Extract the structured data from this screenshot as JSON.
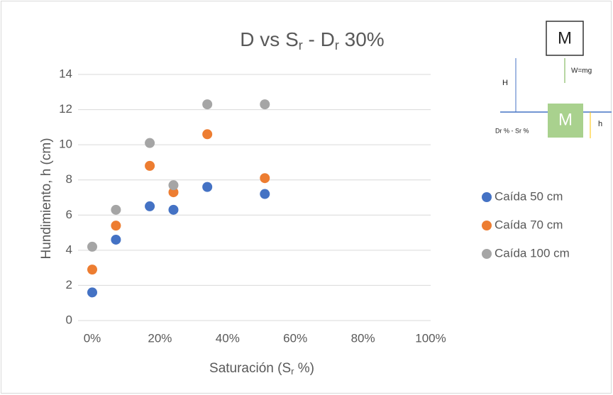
{
  "chart_data": {
    "type": "scatter",
    "title": [
      "D vs S",
      "r",
      " - D",
      "r",
      " 30%"
    ],
    "x_label": [
      "Saturación (S",
      "r",
      " %)"
    ],
    "y_label": "Hundimiento, h (cm)",
    "x": [
      0,
      7,
      17,
      24,
      34,
      51
    ],
    "series": [
      {
        "name": "Caída 50 cm",
        "color": "#4472c4",
        "values": [
          1.6,
          4.6,
          6.5,
          6.3,
          7.6,
          7.2
        ]
      },
      {
        "name": "Caída 70 cm",
        "color": "#ed7d31",
        "values": [
          2.9,
          5.4,
          8.8,
          7.3,
          10.6,
          8.1
        ]
      },
      {
        "name": "Caída 100 cm",
        "color": "#a5a5a5",
        "values": [
          4.2,
          6.3,
          10.1,
          7.7,
          12.3,
          12.3
        ]
      }
    ],
    "xlim": [
      0,
      100
    ],
    "xticks": [
      {
        "value": 0,
        "label": "0%"
      },
      {
        "value": 20,
        "label": "20%"
      },
      {
        "value": 40,
        "label": "40%"
      },
      {
        "value": 60,
        "label": "60%"
      },
      {
        "value": 80,
        "label": "80%"
      },
      {
        "value": 100,
        "label": "100%"
      }
    ],
    "ylim": [
      0,
      14
    ],
    "yticks": [
      0,
      2,
      4,
      6,
      8,
      10,
      12,
      14
    ],
    "grid": true,
    "legend": "right"
  },
  "inset": {
    "mass_top": "M",
    "height": "H",
    "weight": "W=mg",
    "mass_bottom": "M",
    "sink": "h",
    "condition": "Dr % - Sr %"
  }
}
